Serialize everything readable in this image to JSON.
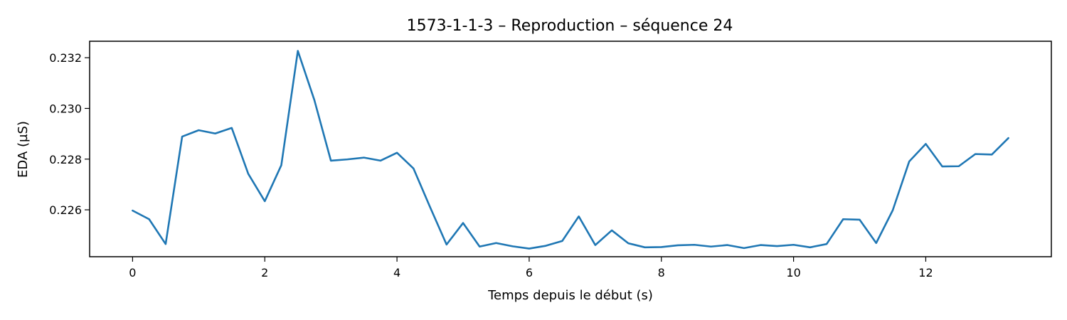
{
  "chart_data": {
    "type": "line",
    "title": "1573-1-1-3 – Reproduction – séquence 24",
    "xlabel": "Temps depuis le début (s)",
    "ylabel": "EDA (µS)",
    "xlim": [
      -0.65,
      13.9
    ],
    "ylim": [
      0.22415,
      0.23265
    ],
    "x_ticks": [
      0,
      2,
      4,
      6,
      8,
      10,
      12
    ],
    "x_tick_labels": [
      "0",
      "2",
      "4",
      "6",
      "8",
      "10",
      "12"
    ],
    "y_ticks": [
      0.226,
      0.228,
      0.23,
      0.232
    ],
    "y_tick_labels": [
      "0.226",
      "0.228",
      "0.230",
      "0.232"
    ],
    "grid": false,
    "color": "#1f77b4",
    "series": [
      {
        "x": [
          0,
          0.25,
          0.5,
          0.75,
          1.0,
          1.25,
          1.5,
          1.75,
          2.0,
          2.25,
          2.5,
          2.75,
          3.0,
          3.25,
          3.5,
          3.75,
          4.0,
          4.25,
          4.5,
          4.75,
          5.0,
          5.25,
          5.5,
          5.75,
          6.0,
          6.25,
          6.5,
          6.75,
          7.0,
          7.25,
          7.5,
          7.75,
          8.0,
          8.25,
          8.5,
          8.75,
          9.0,
          9.25,
          9.5,
          9.75,
          10.0,
          10.25,
          10.5,
          10.75,
          11.0,
          11.25,
          11.5,
          11.75,
          12.0,
          12.25,
          12.5,
          12.75,
          13.0,
          13.25
        ],
        "y": [
          0.22597,
          0.22563,
          0.22465,
          0.22889,
          0.22914,
          0.22901,
          0.22923,
          0.22742,
          0.22634,
          0.22776,
          0.23227,
          0.23033,
          0.22794,
          0.22799,
          0.22806,
          0.22794,
          0.22825,
          0.22763,
          0.22611,
          0.22463,
          0.22548,
          0.22455,
          0.22469,
          0.22456,
          0.22447,
          0.22458,
          0.22477,
          0.22574,
          0.22461,
          0.22519,
          0.22468,
          0.22452,
          0.22453,
          0.2246,
          0.22462,
          0.22455,
          0.22461,
          0.22449,
          0.22461,
          0.22457,
          0.22462,
          0.22452,
          0.22465,
          0.22563,
          0.22561,
          0.22469,
          0.22598,
          0.22791,
          0.2286,
          0.22771,
          0.22772,
          0.2282,
          0.22818,
          0.22883
        ]
      }
    ]
  }
}
